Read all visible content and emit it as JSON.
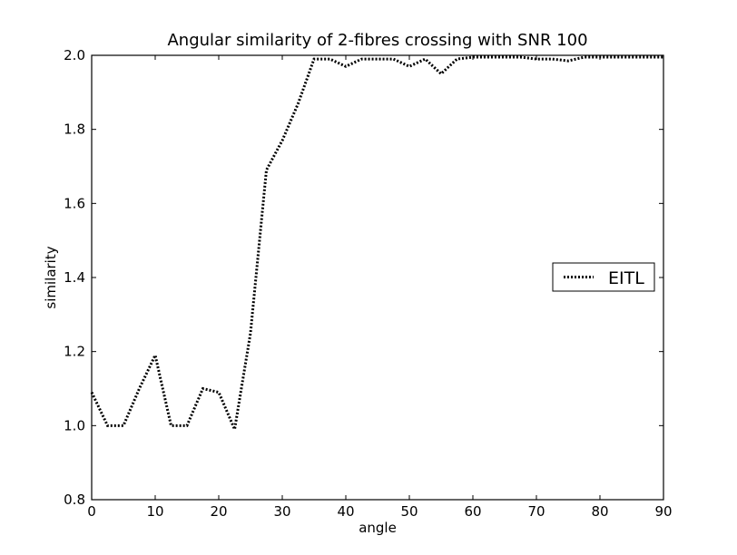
{
  "chart_data": {
    "type": "line",
    "title": "Angular similarity of 2-fibres crossing with SNR 100",
    "xlabel": "angle",
    "ylabel": "similarity",
    "xlim": [
      0,
      90
    ],
    "ylim": [
      0.8,
      2.0
    ],
    "xticks": [
      "0",
      "10",
      "20",
      "30",
      "40",
      "50",
      "60",
      "70",
      "80",
      "90"
    ],
    "yticks": [
      "0.8",
      "1.0",
      "1.2",
      "1.4",
      "1.6",
      "1.8",
      "2.0"
    ],
    "grid": false,
    "legend_position": "center-right",
    "series": [
      {
        "name": "EITL",
        "color": "#000000",
        "line_style": "dotted",
        "x": [
          0,
          2.5,
          5,
          7.5,
          10,
          12.5,
          15,
          17.5,
          20,
          22.5,
          25,
          27.5,
          30,
          32.5,
          35,
          37.5,
          40,
          42.5,
          45,
          47.5,
          50,
          52.5,
          55,
          57.5,
          60,
          62.5,
          65,
          67.5,
          70,
          72.5,
          75,
          77.5,
          80,
          82.5,
          85,
          87.5,
          90
        ],
        "y": [
          1.09,
          1.0,
          1.0,
          1.1,
          1.19,
          1.0,
          1.0,
          1.1,
          1.09,
          0.99,
          1.25,
          1.69,
          1.77,
          1.87,
          1.99,
          1.99,
          1.97,
          1.99,
          1.99,
          1.99,
          1.97,
          1.99,
          1.95,
          1.99,
          1.995,
          1.995,
          1.995,
          1.995,
          1.99,
          1.99,
          1.985,
          1.995,
          1.995,
          1.995,
          1.995,
          1.995,
          1.995
        ]
      }
    ]
  }
}
